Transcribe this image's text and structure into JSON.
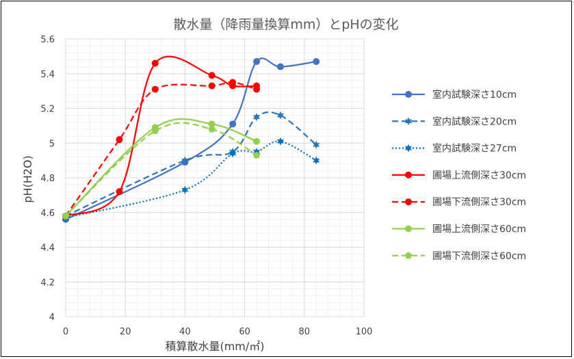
{
  "chart_data": {
    "type": "line",
    "title": "散水量（降雨量換算mm）とpHの変化",
    "xlabel": "積算散水量(mm/㎡)",
    "ylabel": "pH(H2O)",
    "xlim": [
      0,
      100
    ],
    "ylim": [
      4,
      5.6
    ],
    "x_ticks": [
      "0",
      "20",
      "40",
      "60",
      "80",
      "100"
    ],
    "y_ticks": [
      "4",
      "4.2",
      "4.4",
      "4.6",
      "4.8",
      "5",
      "5.2",
      "5.4",
      "5.6"
    ],
    "x_tick_values": [
      0,
      20,
      40,
      60,
      80,
      100
    ],
    "y_tick_values": [
      4,
      4.2,
      4.4,
      4.6,
      4.8,
      5,
      5.2,
      5.4,
      5.6
    ],
    "grid": true,
    "minor_grid": true,
    "legend_position": "right",
    "series": [
      {
        "name": "室内試験深さ10cm",
        "color": "#4472C4",
        "dash": "solid",
        "marker": "circle",
        "x": [
          0,
          40,
          56,
          64,
          72,
          84
        ],
        "y": [
          4.56,
          4.89,
          5.11,
          5.47,
          5.44,
          5.47
        ]
      },
      {
        "name": "室内試験深さ20cm",
        "color": "#2E75B6",
        "dash": "dash",
        "marker": "star",
        "x": [
          0,
          40,
          56,
          64,
          72,
          84
        ],
        "y": [
          4.58,
          4.9,
          4.95,
          5.15,
          5.16,
          4.99
        ]
      },
      {
        "name": "室内試験深さ27cm",
        "color": "#0070C0",
        "dash": "dot",
        "marker": "star",
        "x": [
          0,
          40,
          56,
          64,
          72,
          84
        ],
        "y": [
          4.57,
          4.73,
          4.94,
          4.95,
          5.01,
          4.9
        ]
      },
      {
        "name": "圃場上流側深さ30cm",
        "color": "#FF0000",
        "dash": "solid",
        "marker": "circle",
        "x": [
          0,
          18,
          30,
          49,
          56,
          64
        ],
        "y": [
          4.58,
          4.72,
          5.46,
          5.39,
          5.33,
          5.33
        ]
      },
      {
        "name": "圃場下流側深さ30cm",
        "color": "#FF0000",
        "dash": "dash",
        "marker": "circle",
        "x": [
          0,
          18,
          30,
          49,
          56,
          64
        ],
        "y": [
          4.58,
          5.02,
          5.31,
          5.33,
          5.35,
          5.31
        ]
      },
      {
        "name": "圃場上流側深さ60cm",
        "color": "#92D050",
        "dash": "solid",
        "marker": "circle",
        "x": [
          0,
          30,
          49,
          64
        ],
        "y": [
          4.58,
          5.09,
          5.11,
          5.01
        ]
      },
      {
        "name": "圃場下流側深さ60cm",
        "color": "#92D050",
        "dash": "dash",
        "marker": "pentagon",
        "x": [
          0,
          30,
          49,
          64
        ],
        "y": [
          4.58,
          5.07,
          5.08,
          4.93
        ]
      }
    ]
  }
}
